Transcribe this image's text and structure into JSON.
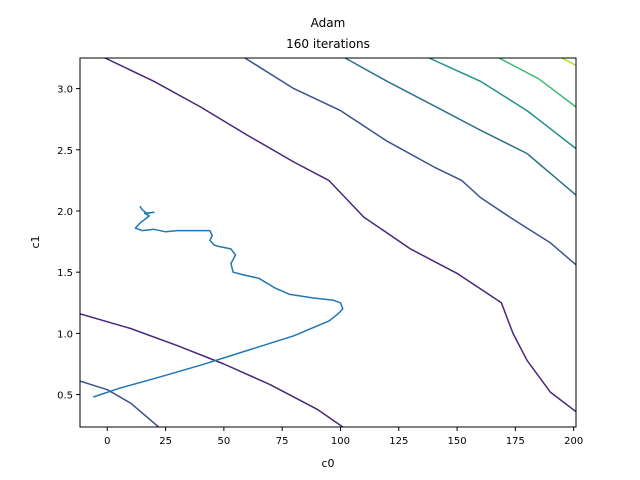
{
  "chart_data": {
    "type": "line",
    "title": "Adam",
    "subtitle": "160 iterations",
    "xlabel": "c0",
    "ylabel": "c1",
    "xlim": [
      -11.7,
      201
    ],
    "ylim": [
      0.235,
      3.25
    ],
    "xticks": [
      0,
      25,
      50,
      75,
      100,
      125,
      150,
      175,
      200
    ],
    "yticks": [
      0.5,
      1.0,
      1.5,
      2.0,
      2.5,
      3.0
    ],
    "xtick_labels": [
      "0",
      "25",
      "50",
      "75",
      "100",
      "125",
      "150",
      "175",
      "200"
    ],
    "ytick_labels": [
      "0.5",
      "1.0",
      "1.5",
      "2.0",
      "2.5",
      "3.0"
    ],
    "grid": false,
    "contours": [
      {
        "level": 1,
        "color": "#3b528b",
        "points": [
          [
            -11.7,
            0.61
          ],
          [
            0,
            0.54
          ],
          [
            10,
            0.43
          ],
          [
            22,
            0.235
          ]
        ]
      },
      {
        "level": 2,
        "color": "#482878",
        "points": [
          [
            -11.7,
            1.16
          ],
          [
            10,
            1.04
          ],
          [
            30,
            0.9
          ],
          [
            50,
            0.75
          ],
          [
            70,
            0.58
          ],
          [
            90,
            0.38
          ],
          [
            101,
            0.235
          ]
        ]
      },
      {
        "level": 2,
        "color": "#482878",
        "points": [
          [
            -1,
            3.25
          ],
          [
            20,
            3.06
          ],
          [
            40,
            2.85
          ],
          [
            60,
            2.62
          ],
          [
            80,
            2.4
          ],
          [
            95,
            2.25
          ],
          [
            100,
            2.15
          ],
          [
            110,
            1.95
          ],
          [
            130,
            1.69
          ],
          [
            150,
            1.49
          ],
          [
            169,
            1.25
          ],
          [
            174,
            1.0
          ],
          [
            180,
            0.78
          ],
          [
            190,
            0.52
          ],
          [
            201,
            0.36
          ]
        ]
      },
      {
        "level": 3,
        "color": "#3b528b",
        "points": [
          [
            59,
            3.25
          ],
          [
            80,
            3.0
          ],
          [
            100,
            2.82
          ],
          [
            120,
            2.57
          ],
          [
            140,
            2.36
          ],
          [
            152,
            2.25
          ],
          [
            160,
            2.11
          ],
          [
            175,
            1.92
          ],
          [
            190,
            1.74
          ],
          [
            201,
            1.56
          ]
        ]
      },
      {
        "level": 4,
        "color": "#2c728e",
        "points": [
          [
            102,
            3.25
          ],
          [
            120,
            3.06
          ],
          [
            140,
            2.86
          ],
          [
            160,
            2.66
          ],
          [
            180,
            2.47
          ],
          [
            201,
            2.13
          ]
        ]
      },
      {
        "level": 5,
        "color": "#21918c",
        "points": [
          [
            138,
            3.25
          ],
          [
            160,
            3.06
          ],
          [
            180,
            2.82
          ],
          [
            201,
            2.51
          ]
        ]
      },
      {
        "level": 6,
        "color": "#3fbc73",
        "points": [
          [
            168,
            3.25
          ],
          [
            185,
            3.08
          ],
          [
            201,
            2.85
          ]
        ]
      },
      {
        "level": 7,
        "color": "#b4de2c",
        "points": [
          [
            195,
            3.25
          ],
          [
            201,
            3.19
          ]
        ]
      }
    ],
    "series": [
      {
        "color": "#1f77b4",
        "x": [
          -6,
          5,
          20,
          40,
          60,
          80,
          95,
          99,
          101,
          100,
          97,
          88,
          78,
          72,
          65,
          58,
          54,
          53,
          55,
          53,
          48,
          46,
          44,
          45,
          44,
          38,
          30,
          25,
          20,
          15,
          12,
          14,
          18,
          16,
          20,
          17,
          15,
          14
        ],
        "y": [
          0.48,
          0.55,
          0.63,
          0.74,
          0.86,
          0.98,
          1.1,
          1.16,
          1.2,
          1.25,
          1.27,
          1.29,
          1.32,
          1.37,
          1.45,
          1.48,
          1.5,
          1.57,
          1.64,
          1.69,
          1.71,
          1.72,
          1.76,
          1.8,
          1.84,
          1.84,
          1.84,
          1.83,
          1.85,
          1.84,
          1.86,
          1.9,
          1.96,
          1.98,
          1.99,
          1.98,
          2.01,
          2.04
        ]
      }
    ]
  }
}
